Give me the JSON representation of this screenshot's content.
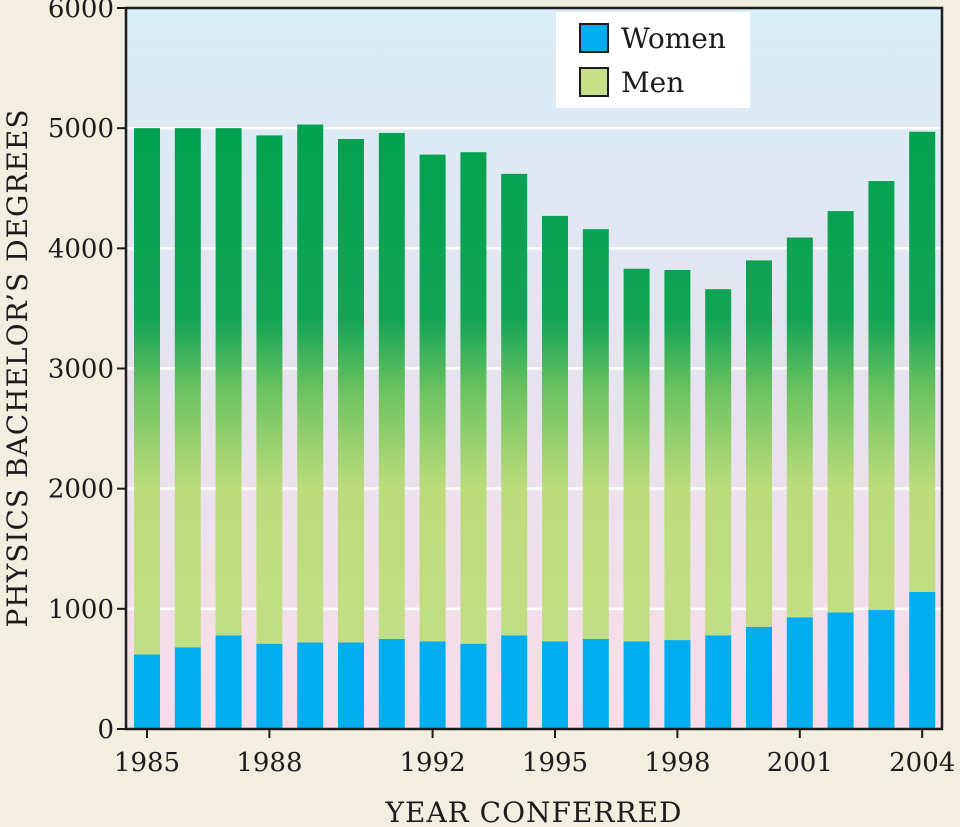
{
  "chart_data": {
    "type": "bar",
    "stacked": true,
    "categories": [
      "1985",
      "1986",
      "1987",
      "1988",
      "1989",
      "1990",
      "1991",
      "1992",
      "1993",
      "1994",
      "1995",
      "1996",
      "1997",
      "1998",
      "1999",
      "2000",
      "2001",
      "2002",
      "2003",
      "2004"
    ],
    "x_tick_labels": [
      "1985",
      "1988",
      "1992",
      "1995",
      "1998",
      "2001",
      "2004"
    ],
    "series": [
      {
        "name": "Women",
        "color": "#00adef",
        "values": [
          620,
          680,
          780,
          710,
          720,
          720,
          750,
          730,
          710,
          780,
          730,
          750,
          730,
          740,
          780,
          850,
          930,
          970,
          990,
          1140
        ]
      },
      {
        "name": "Men",
        "color": "#c6e08a",
        "values": [
          4380,
          4320,
          4220,
          4230,
          4310,
          4190,
          4210,
          4050,
          4090,
          3840,
          3540,
          3410,
          3100,
          3080,
          2880,
          3050,
          3160,
          3340,
          3570,
          3830
        ]
      }
    ],
    "totals": [
      5000,
      5000,
      5000,
      4940,
      5030,
      4910,
      4960,
      4780,
      4800,
      4620,
      4270,
      4160,
      3830,
      3820,
      3660,
      3900,
      4090,
      4310,
      4560,
      4970
    ],
    "title": "",
    "xlabel": "YEAR CONFERRED",
    "ylabel": "PHYSICS BACHELOR’S DEGREES",
    "ylim": [
      0,
      6000
    ],
    "y_ticks": [
      "0",
      "1000",
      "2000",
      "3000",
      "4000",
      "5000",
      "6000"
    ],
    "grid": true,
    "legend_position": "top-center"
  },
  "legend": {
    "women": "Women",
    "men": "Men"
  }
}
